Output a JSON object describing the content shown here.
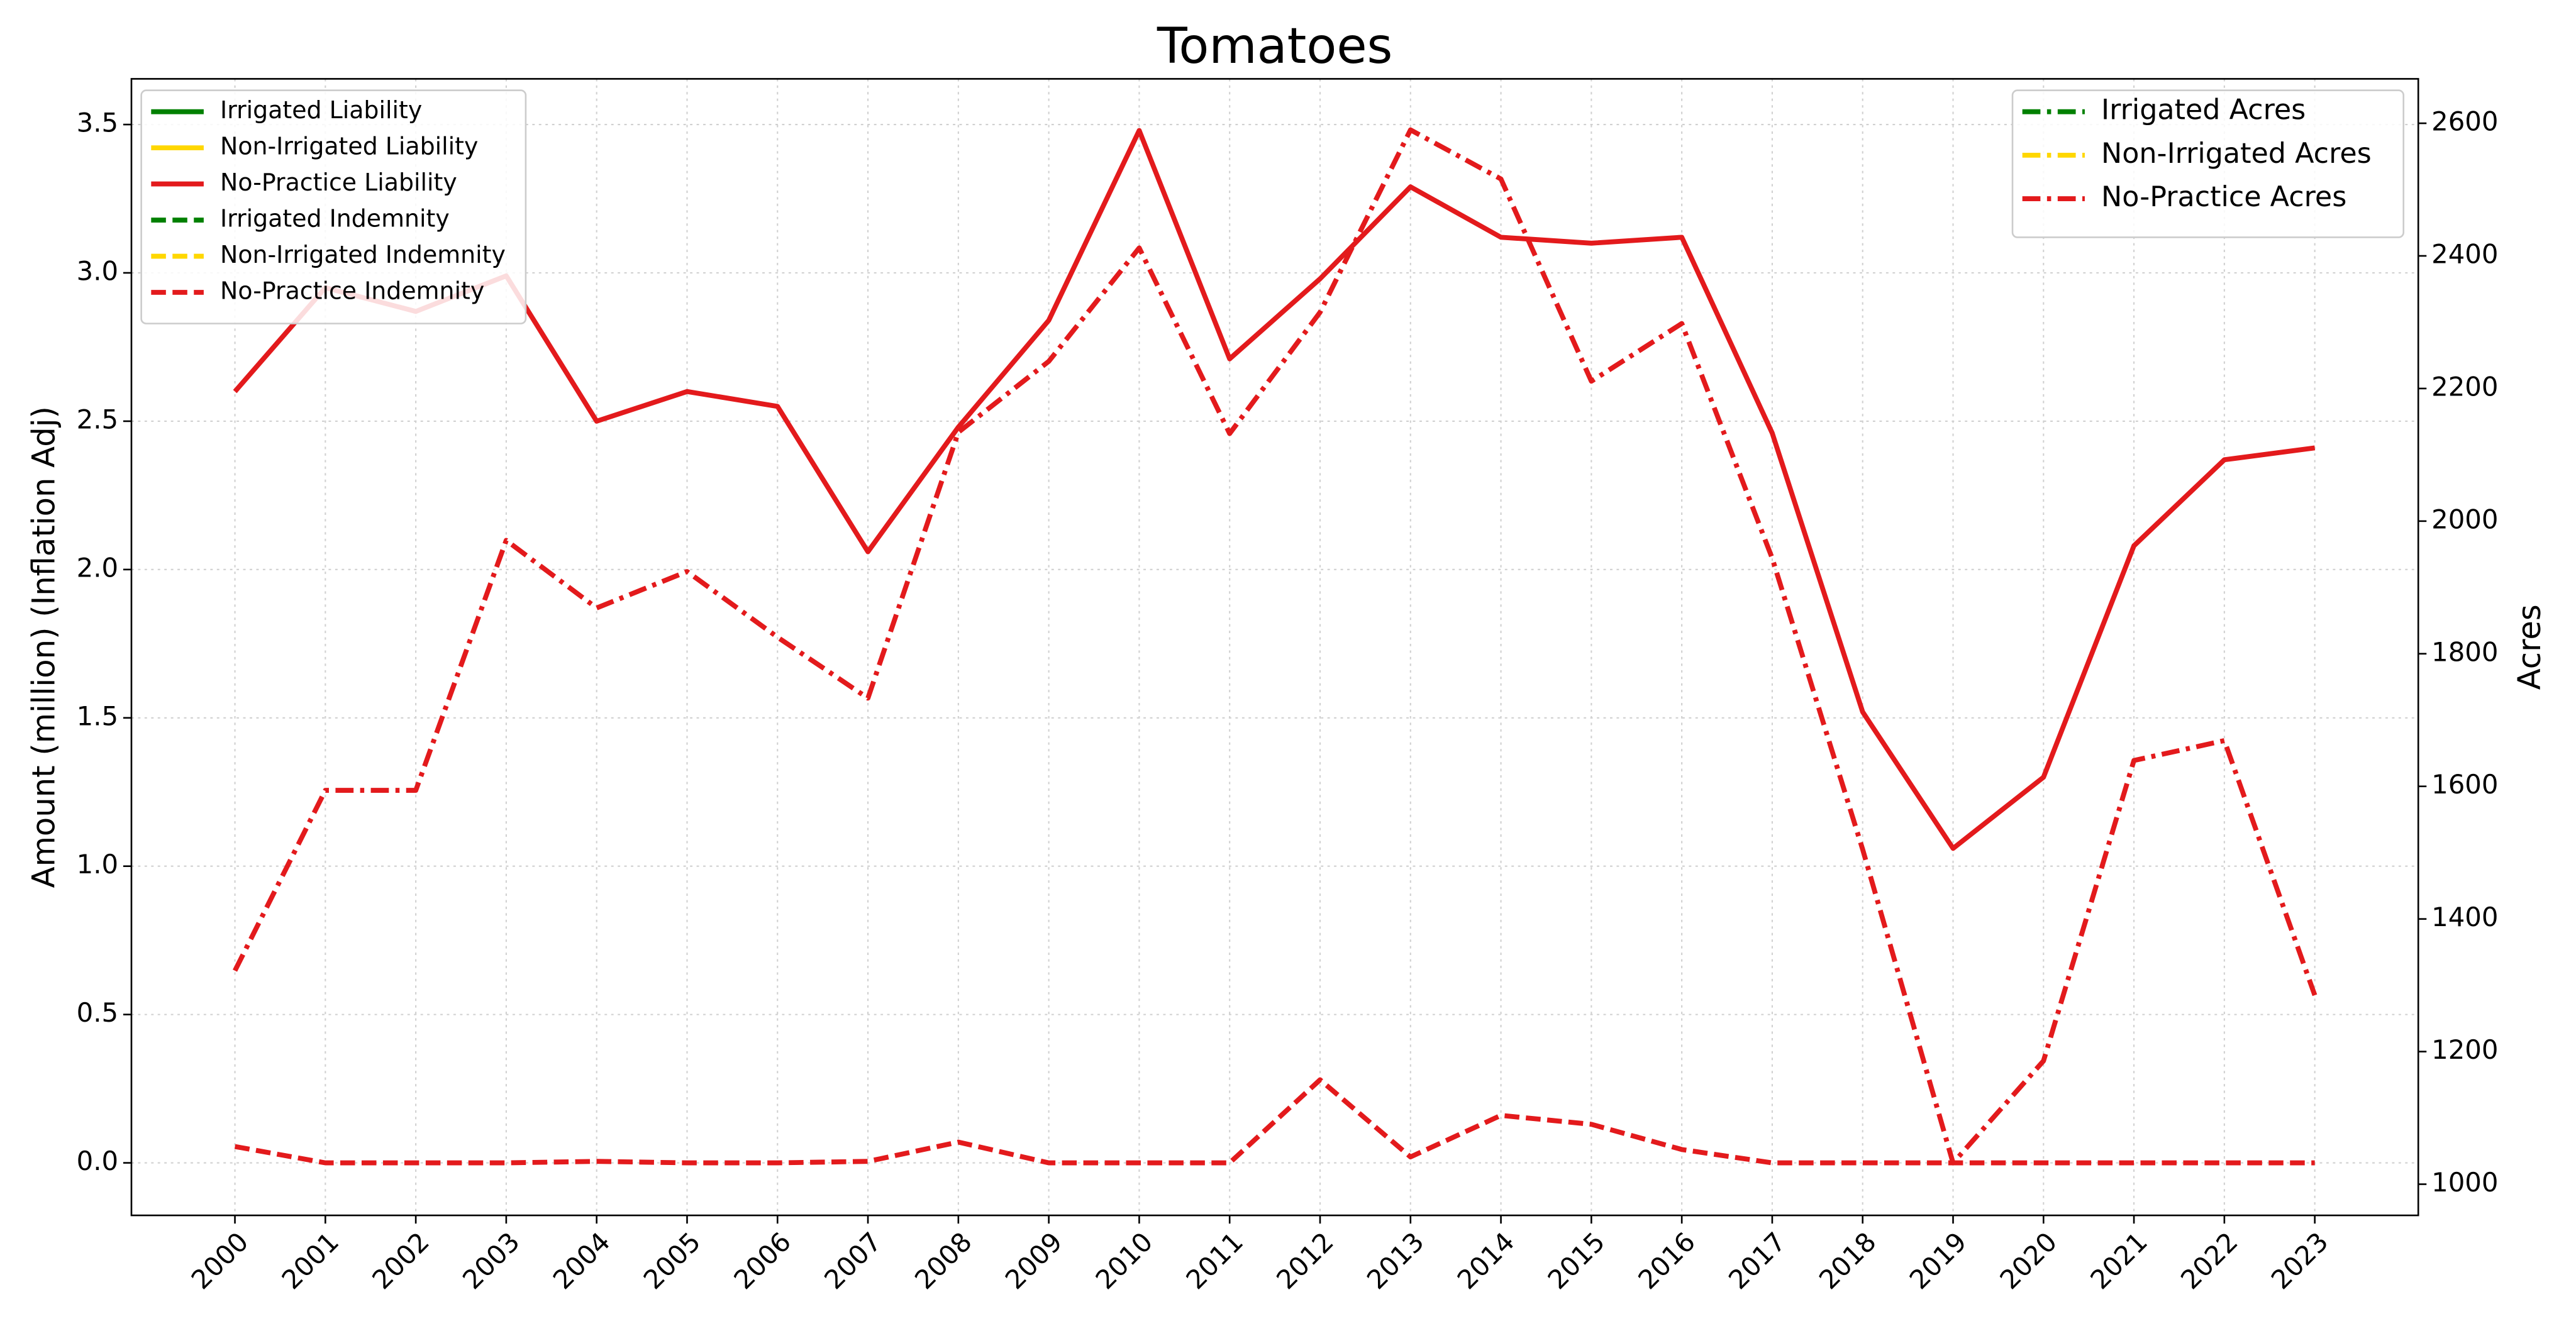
{
  "chart_data": {
    "type": "line",
    "title": "Tomatoes",
    "ylabel": "Amount (million) (Inflation Adj)",
    "y2label": "Acres",
    "categories": [
      "2000",
      "2001",
      "2002",
      "2003",
      "2004",
      "2005",
      "2006",
      "2007",
      "2008",
      "2009",
      "2010",
      "2011",
      "2012",
      "2013",
      "2014",
      "2015",
      "2016",
      "2017",
      "2018",
      "2019",
      "2020",
      "2021",
      "2022",
      "2023"
    ],
    "series": [
      {
        "name": "Irrigated Liability",
        "color": "#008000",
        "linestyle": "solid",
        "values": [
          null,
          null,
          null,
          null,
          null,
          null,
          null,
          null,
          null,
          null,
          null,
          null,
          null,
          null,
          null,
          null,
          null,
          null,
          null,
          null,
          null,
          null,
          null,
          null
        ]
      },
      {
        "name": "Non-Irrigated Liability",
        "color": "#ffd700",
        "linestyle": "solid",
        "values": [
          null,
          null,
          null,
          null,
          null,
          null,
          null,
          null,
          null,
          null,
          null,
          null,
          null,
          null,
          null,
          null,
          null,
          null,
          null,
          null,
          null,
          null,
          null,
          null
        ]
      },
      {
        "name": "No-Practice Liability",
        "color": "#e31a1c",
        "linestyle": "solid",
        "values": [
          2.6,
          2.95,
          2.87,
          2.99,
          2.5,
          2.6,
          2.55,
          2.06,
          2.48,
          2.84,
          3.48,
          2.71,
          2.98,
          3.29,
          3.12,
          3.1,
          3.12,
          2.46,
          1.52,
          1.06,
          1.3,
          2.08,
          2.37,
          2.41
        ]
      },
      {
        "name": "Irrigated Indemnity",
        "color": "#008000",
        "linestyle": "dashed",
        "values": [
          null,
          null,
          null,
          null,
          null,
          null,
          null,
          null,
          null,
          null,
          null,
          null,
          null,
          null,
          null,
          null,
          null,
          null,
          null,
          null,
          null,
          null,
          null,
          null
        ]
      },
      {
        "name": "Non-Irrigated Indemnity",
        "color": "#ffd700",
        "linestyle": "dashed",
        "values": [
          null,
          null,
          null,
          null,
          null,
          null,
          null,
          null,
          null,
          null,
          null,
          null,
          null,
          null,
          null,
          null,
          null,
          null,
          null,
          null,
          null,
          null,
          null,
          null
        ]
      },
      {
        "name": "No-Practice Indemnity",
        "color": "#e31a1c",
        "linestyle": "dashed",
        "values": [
          0.055,
          0,
          0,
          0,
          0.005,
          0,
          0,
          0.005,
          0.07,
          0,
          0,
          0,
          0.28,
          0.02,
          0.16,
          0.13,
          0.045,
          0,
          0,
          0,
          0,
          0,
          0,
          0
        ]
      },
      {
        "name": "Irrigated Acres",
        "color": "#008000",
        "linestyle": "dashdot",
        "axis": "y2",
        "values": [
          null,
          null,
          null,
          null,
          null,
          null,
          null,
          null,
          null,
          null,
          null,
          null,
          null,
          null,
          null,
          null,
          null,
          null,
          null,
          null,
          null,
          null,
          null,
          null
        ]
      },
      {
        "name": "Non-Irrigated Acres",
        "color": "#ffd700",
        "linestyle": "dashdot",
        "axis": "y2",
        "values": [
          null,
          null,
          null,
          null,
          null,
          null,
          null,
          null,
          null,
          null,
          null,
          null,
          null,
          null,
          null,
          null,
          null,
          null,
          null,
          null,
          null,
          null,
          null,
          null
        ]
      },
      {
        "name": "No-Practice Acres",
        "color": "#e31a1c",
        "linestyle": "dashdot",
        "axis": "y2",
        "values": [
          1322,
          1594,
          1594,
          1971,
          1869,
          1924,
          1825,
          1733,
          2134,
          2241,
          2412,
          2132,
          2315,
          2590,
          2516,
          2211,
          2298,
          1944,
          1505,
          1032,
          1186,
          1639,
          1669,
          1285
        ]
      }
    ],
    "ylim": [
      -0.177,
      3.654
    ],
    "yticks": [
      {
        "value": 0,
        "label": "0.0"
      },
      0.5,
      {
        "value": 1,
        "label": "1.0"
      },
      1.5,
      {
        "value": 2,
        "label": "2.0"
      },
      2.5,
      {
        "value": 3,
        "label": "3.0"
      },
      3.5
    ],
    "y2lim": [
      953,
      2667
    ],
    "y2ticks": [
      1000,
      1200,
      1400,
      1600,
      1800,
      2000,
      2200,
      2400,
      2600
    ],
    "grid": true,
    "legend_loc": "upper left",
    "legend2_loc": "upper right"
  }
}
